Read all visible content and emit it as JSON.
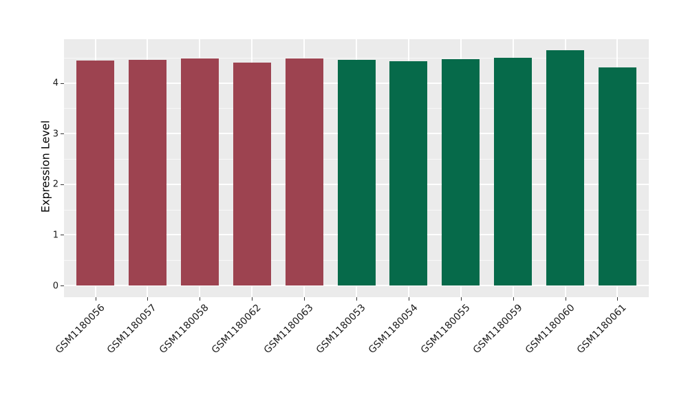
{
  "chart_data": {
    "type": "bar",
    "title": "",
    "xlabel": "",
    "ylabel": "Expression Level",
    "categories": [
      "GSM1180056",
      "GSM1180057",
      "GSM1180058",
      "GSM1180062",
      "GSM1180063",
      "GSM1180053",
      "GSM1180054",
      "GSM1180055",
      "GSM1180059",
      "GSM1180060",
      "GSM1180061"
    ],
    "values": [
      4.44,
      4.46,
      4.48,
      4.4,
      4.48,
      4.46,
      4.43,
      4.47,
      4.5,
      4.64,
      4.31
    ],
    "bar_groups": [
      "A",
      "A",
      "A",
      "A",
      "A",
      "B",
      "B",
      "B",
      "B",
      "B",
      "B"
    ],
    "group_colors": {
      "A": "#9D4350",
      "B": "#066A4A"
    },
    "yticks": [
      0,
      1,
      2,
      3,
      4
    ],
    "yticks_minor": [
      0.5,
      1.5,
      2.5,
      3.5,
      4.5
    ],
    "ylim": [
      -0.23,
      4.86
    ],
    "grid": true,
    "legend": false,
    "panel_background": "#EBEBEB",
    "grid_color": "#FFFFFF",
    "tick_label_color": "#1A1A1A",
    "axis_title_color": "#000000"
  }
}
